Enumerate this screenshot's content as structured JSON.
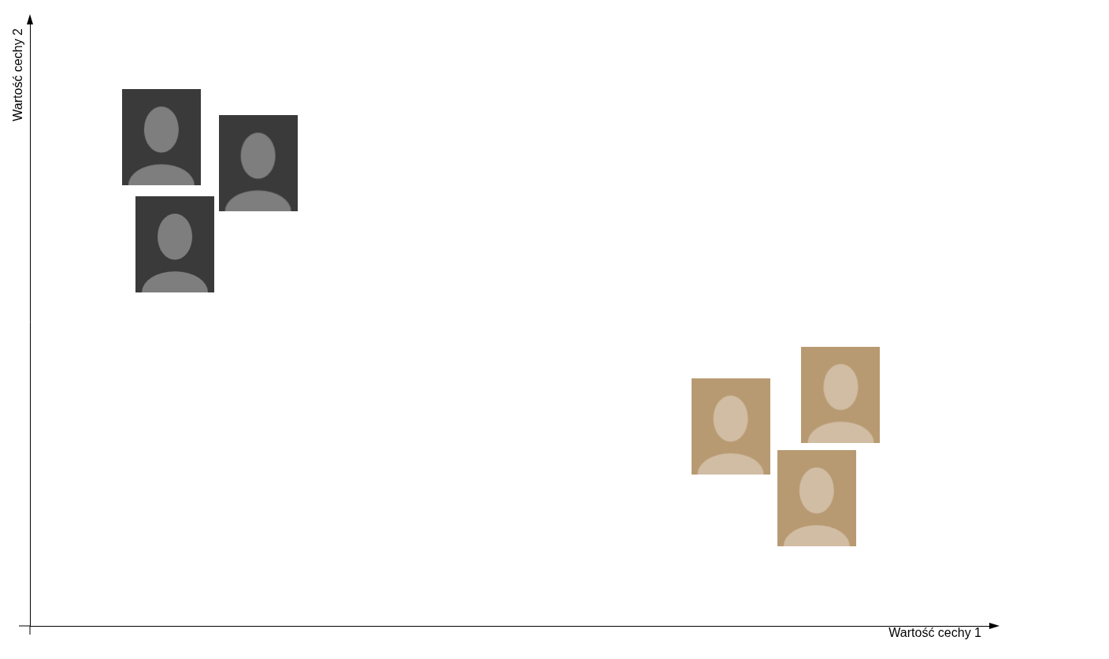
{
  "chart_data": {
    "type": "scatter",
    "x_label": "Wartość cechy 1",
    "y_label": "Wartość cechy 2",
    "x": [
      1.36,
      2.36,
      1.5,
      7.25,
      8.39,
      8.14
    ],
    "values": [
      8.03,
      7.6,
      6.27,
      3.28,
      3.8,
      2.1
    ],
    "colors": [
      "#3a3a3a",
      "#3a3a3a",
      "#3a3a3a",
      "#b89a72",
      "#b89a72",
      "#b89a72"
    ],
    "marker": "rect",
    "xlim": [
      0,
      10
    ],
    "ylim": [
      0,
      10
    ],
    "tick_labels": false,
    "grid": false
  }
}
